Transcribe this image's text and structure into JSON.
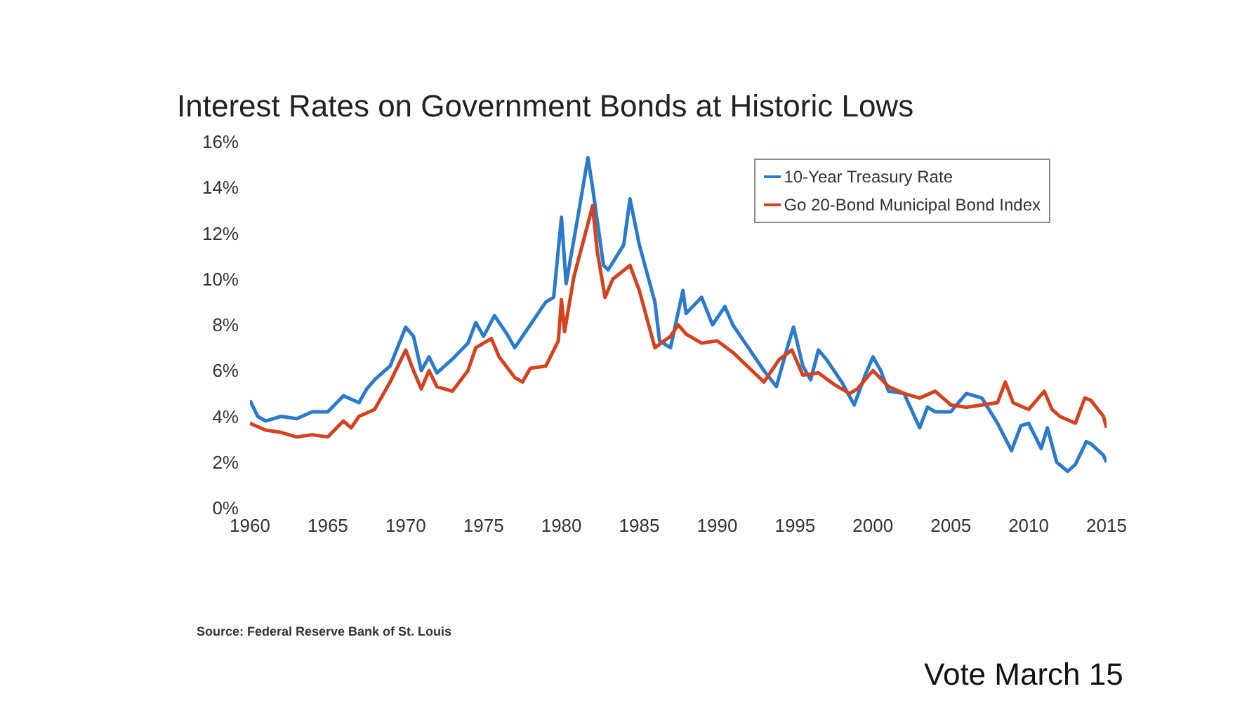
{
  "chart_data": {
    "type": "line",
    "title": "Interest Rates on Government Bonds at Historic Lows",
    "annotations": [
      "Source: Federal Reserve Bank of St. Louis",
      "Vote March 15"
    ],
    "xlim": [
      1960,
      2015
    ],
    "xticks": [
      1960,
      1965,
      1970,
      1975,
      1980,
      1985,
      1990,
      1995,
      2000,
      2005,
      2010,
      2015
    ],
    "ylim": [
      0,
      16
    ],
    "yticks": [
      {
        "value": 0,
        "label": "0%"
      },
      {
        "value": 2,
        "label": "2%"
      },
      {
        "value": 4,
        "label": "4%"
      },
      {
        "value": 6,
        "label": "6%"
      },
      {
        "value": 8,
        "label": "8%"
      },
      {
        "value": 10,
        "label": "10%"
      },
      {
        "value": 12,
        "label": "12%"
      },
      {
        "value": 14,
        "label": "14%"
      },
      {
        "value": 16,
        "label": "16%"
      }
    ],
    "grid": false,
    "legend": "top right",
    "marker": "none",
    "line_style": "solid",
    "series": [
      {
        "name": "10-Year Treasury Rate",
        "color": "#2a7bcc",
        "x": [
          1960,
          1960.5,
          1961,
          1962,
          1963,
          1964,
          1965,
          1966,
          1967,
          1967.5,
          1968,
          1969,
          1970,
          1970.5,
          1971,
          1971.5,
          1972,
          1973,
          1974,
          1974.5,
          1975,
          1975.7,
          1976.5,
          1977,
          1978,
          1979,
          1979.5,
          1980,
          1980.3,
          1981,
          1981.7,
          1982,
          1982.7,
          1983,
          1984,
          1984.4,
          1985,
          1986,
          1986.3,
          1987,
          1987.8,
          1988,
          1989,
          1989.7,
          1990.5,
          1991,
          1992,
          1993,
          1993.8,
          1994.5,
          1994.9,
          1995.5,
          1996,
          1996.5,
          1997,
          1998,
          1998.8,
          1999.5,
          2000,
          2000.5,
          2001,
          2002,
          2003,
          2003.5,
          2004,
          2005,
          2006,
          2007,
          2008,
          2008.9,
          2009.5,
          2010,
          2010.8,
          2011.2,
          2011.8,
          2012.5,
          2013,
          2013.7,
          2014,
          2014.8,
          2015
        ],
        "values": [
          4.7,
          4.0,
          3.8,
          4.0,
          3.9,
          4.2,
          4.2,
          4.9,
          4.6,
          5.2,
          5.6,
          6.2,
          7.9,
          7.5,
          6.0,
          6.6,
          5.9,
          6.5,
          7.2,
          8.1,
          7.5,
          8.4,
          7.6,
          7.0,
          8.0,
          9.0,
          9.2,
          12.7,
          9.8,
          12.5,
          15.3,
          14.0,
          10.6,
          10.4,
          11.5,
          13.5,
          11.5,
          9.0,
          7.3,
          7.0,
          9.5,
          8.5,
          9.2,
          8.0,
          8.8,
          8.0,
          7.0,
          6.0,
          5.3,
          7.0,
          7.9,
          6.2,
          5.6,
          6.9,
          6.5,
          5.5,
          4.5,
          5.8,
          6.6,
          6.0,
          5.1,
          5.0,
          3.5,
          4.4,
          4.2,
          4.2,
          5.0,
          4.8,
          3.7,
          2.5,
          3.6,
          3.7,
          2.6,
          3.5,
          2.0,
          1.6,
          1.9,
          2.9,
          2.8,
          2.3,
          2.0
        ]
      },
      {
        "name": "Go 20-Bond Municipal Bond Index",
        "color": "#d4421e",
        "x": [
          1960,
          1961,
          1962,
          1963,
          1964,
          1965,
          1966,
          1966.5,
          1967,
          1968,
          1969,
          1970,
          1970.5,
          1971,
          1971.5,
          1972,
          1973,
          1974,
          1974.5,
          1975.5,
          1976,
          1977,
          1977.5,
          1978,
          1979,
          1979.8,
          1980,
          1980.2,
          1980.8,
          1981.5,
          1982,
          1982.3,
          1982.8,
          1983.3,
          1984.4,
          1985,
          1986,
          1987,
          1987.5,
          1988,
          1989,
          1990,
          1991,
          1993,
          1994,
          1994.8,
          1995.5,
          1996.5,
          1997.5,
          1998.5,
          1999,
          2000,
          2001,
          2002,
          2003,
          2004,
          2005,
          2006,
          2007,
          2008,
          2008.5,
          2009,
          2010,
          2011,
          2011.5,
          2012,
          2013,
          2013.6,
          2014,
          2014.8,
          2015
        ],
        "values": [
          3.7,
          3.4,
          3.3,
          3.1,
          3.2,
          3.1,
          3.8,
          3.5,
          4.0,
          4.3,
          5.5,
          6.9,
          6.0,
          5.2,
          6.0,
          5.3,
          5.1,
          6.0,
          7.0,
          7.4,
          6.6,
          5.7,
          5.5,
          6.1,
          6.2,
          7.3,
          9.1,
          7.7,
          10.1,
          11.9,
          13.2,
          11.2,
          9.2,
          10.0,
          10.6,
          9.5,
          7.0,
          7.5,
          8.0,
          7.6,
          7.2,
          7.3,
          6.8,
          5.5,
          6.5,
          6.9,
          5.8,
          5.9,
          5.4,
          5.0,
          5.2,
          6.0,
          5.3,
          5.0,
          4.8,
          5.1,
          4.5,
          4.4,
          4.5,
          4.6,
          5.5,
          4.6,
          4.3,
          5.1,
          4.3,
          4.0,
          3.7,
          4.8,
          4.7,
          4.0,
          3.5
        ]
      }
    ]
  }
}
